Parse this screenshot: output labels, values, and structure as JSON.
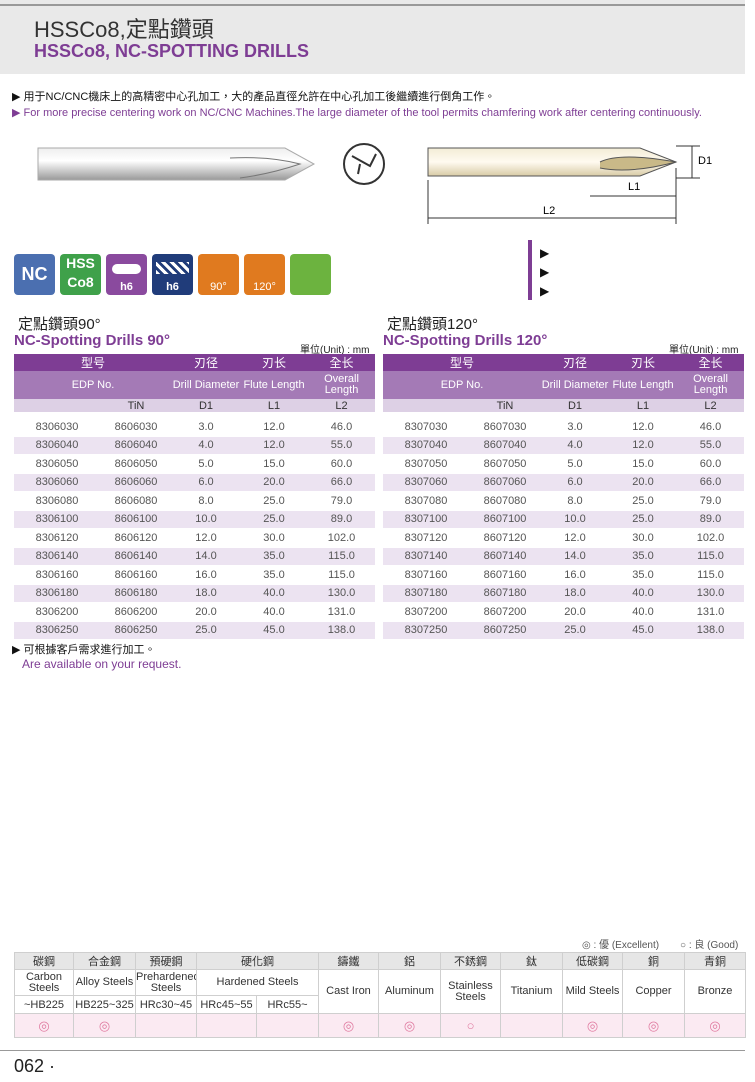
{
  "header": {
    "title": "HSSCo8,定點鑽頭",
    "subtitle": "HSSCo8, NC-SPOTTING DRILLS"
  },
  "intro": {
    "zh": "用于NC/CNC機床上的高精密中心孔加工，大的產品直徑允許在中心孔加工後繼續進行倒角工作。",
    "en": "For more precise centering work on NC/CNC Machines.The large diameter of the tool permits chamfering work after centering continuously."
  },
  "diagram": {
    "d1": "D1",
    "l1": "L1",
    "l2": "L2"
  },
  "icons": {
    "nc": "NC",
    "hss": "HSS",
    "co8": "Co8",
    "shank": "h6",
    "flute": "h6",
    "angle90": "90°",
    "angle120": "120°"
  },
  "spec_header": {
    "model": "型号",
    "drill": "刃径",
    "flute": "刃长",
    "overall": "全长",
    "edp": "EDP No.",
    "drill_en": "Drill Diameter",
    "flute_en": "Flute Length",
    "overall_en": "Overall Length",
    "tin": "TiN",
    "d1": "D1",
    "l1": "L1",
    "l2": "L2",
    "unit": "單位(Unit) : mm"
  },
  "tables": [
    {
      "title_zh": "定點鑽頭90°",
      "title_en": "NC-Spotting Drills 90°",
      "rows": [
        [
          "8306030",
          "8606030",
          "3.0",
          "12.0",
          "46.0"
        ],
        [
          "8306040",
          "8606040",
          "4.0",
          "12.0",
          "55.0"
        ],
        [
          "8306050",
          "8606050",
          "5.0",
          "15.0",
          "60.0"
        ],
        [
          "8306060",
          "8606060",
          "6.0",
          "20.0",
          "66.0"
        ],
        [
          "8306080",
          "8606080",
          "8.0",
          "25.0",
          "79.0"
        ],
        [
          "8306100",
          "8606100",
          "10.0",
          "25.0",
          "89.0"
        ],
        [
          "8306120",
          "8606120",
          "12.0",
          "30.0",
          "102.0"
        ],
        [
          "8306140",
          "8606140",
          "14.0",
          "35.0",
          "115.0"
        ],
        [
          "8306160",
          "8606160",
          "16.0",
          "35.0",
          "115.0"
        ],
        [
          "8306180",
          "8606180",
          "18.0",
          "40.0",
          "130.0"
        ],
        [
          "8306200",
          "8606200",
          "20.0",
          "40.0",
          "131.0"
        ],
        [
          "8306250",
          "8606250",
          "25.0",
          "45.0",
          "138.0"
        ]
      ]
    },
    {
      "title_zh": "定點鑽頭120°",
      "title_en": "NC-Spotting Drills 120°",
      "rows": [
        [
          "8307030",
          "8607030",
          "3.0",
          "12.0",
          "46.0"
        ],
        [
          "8307040",
          "8607040",
          "4.0",
          "12.0",
          "55.0"
        ],
        [
          "8307050",
          "8607050",
          "5.0",
          "15.0",
          "60.0"
        ],
        [
          "8307060",
          "8607060",
          "6.0",
          "20.0",
          "66.0"
        ],
        [
          "8307080",
          "8607080",
          "8.0",
          "25.0",
          "79.0"
        ],
        [
          "8307100",
          "8607100",
          "10.0",
          "25.0",
          "89.0"
        ],
        [
          "8307120",
          "8607120",
          "12.0",
          "30.0",
          "102.0"
        ],
        [
          "8307140",
          "8607140",
          "14.0",
          "35.0",
          "115.0"
        ],
        [
          "8307160",
          "8607160",
          "16.0",
          "35.0",
          "115.0"
        ],
        [
          "8307180",
          "8607180",
          "18.0",
          "40.0",
          "130.0"
        ],
        [
          "8307200",
          "8607200",
          "20.0",
          "40.0",
          "131.0"
        ],
        [
          "8307250",
          "8607250",
          "25.0",
          "45.0",
          "138.0"
        ]
      ]
    }
  ],
  "note": {
    "zh": "可根據客户需求進行加工。",
    "en": "Are available on your request."
  },
  "materials": {
    "legend_excellent": "◎ : 優 (Excellent)",
    "legend_good": "○ : 良 (Good)",
    "groups": [
      {
        "zh": "碳鋼",
        "en": "Carbon Steels",
        "hardness": [
          "~HB225"
        ]
      },
      {
        "zh": "合金鋼",
        "en": "Alloy Steels",
        "hardness": [
          "HB225~325"
        ]
      },
      {
        "zh": "預硬鋼",
        "en": "Prehardened Steels",
        "hardness": [
          "HRc30~45"
        ]
      },
      {
        "zh": "硬化鋼",
        "en": "Hardened Steels",
        "hardness": [
          "HRc45~55",
          "HRc55~"
        ]
      },
      {
        "zh": "鑄鐵",
        "en": "Cast Iron"
      },
      {
        "zh": "鋁",
        "en": "Aluminum"
      },
      {
        "zh": "不銹鋼",
        "en": "Stainless Steels"
      },
      {
        "zh": "鈦",
        "en": "Titanium"
      },
      {
        "zh": "低碳鋼",
        "en": "Mild Steels"
      },
      {
        "zh": "銅",
        "en": "Copper"
      },
      {
        "zh": "青銅",
        "en": "Bronze"
      }
    ],
    "ratings": [
      "◎",
      "◎",
      null,
      null,
      null,
      "◎",
      "◎",
      "○",
      null,
      "◎",
      "◎",
      "◎"
    ]
  },
  "footer": {
    "page": "062"
  }
}
